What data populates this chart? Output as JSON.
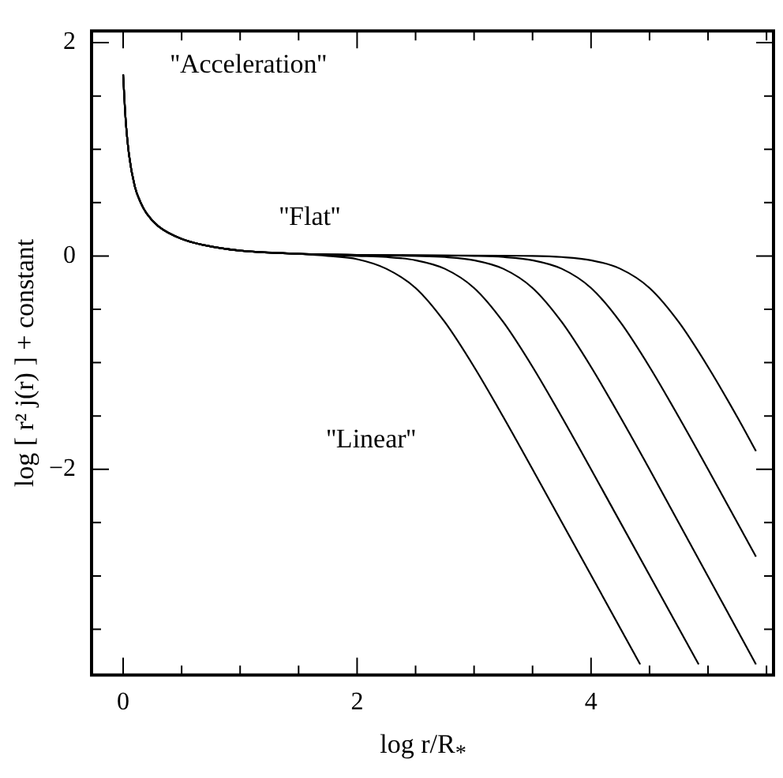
{
  "chart_data": {
    "type": "line",
    "xlabel": "log r/R$_{*}$",
    "ylabel": "log [ r² j(r) ] + constant",
    "xlim": [
      -0.27,
      5.56
    ],
    "ylim": [
      -3.93,
      2.11
    ],
    "xticks": [
      0,
      {
        "value": 0.5,
        "label": null
      },
      {
        "value": 1,
        "label": null
      },
      {
        "value": 1.5,
        "label": null
      },
      2,
      {
        "value": 2.5,
        "label": null
      },
      {
        "value": 3,
        "label": null
      },
      {
        "value": 3.5,
        "label": null
      },
      4,
      {
        "value": 4.5,
        "label": null
      },
      {
        "value": 5,
        "label": null
      },
      {
        "value": 5.5,
        "label": null
      }
    ],
    "yticks": [
      {
        "value": -3.5,
        "label": null
      },
      {
        "value": -3,
        "label": null
      },
      {
        "value": -2.5,
        "label": null
      },
      -2,
      {
        "value": -1.5,
        "label": null
      },
      {
        "value": -1,
        "label": null
      },
      {
        "value": -0.5,
        "label": null
      },
      0,
      {
        "value": 0.5,
        "label": null
      },
      {
        "value": 1,
        "label": null
      },
      {
        "value": 1.5,
        "label": null
      },
      2
    ],
    "grid": false,
    "legend": false,
    "marker": "none",
    "line_style": "solid",
    "annotations": [
      "''Acceleration''",
      "''Flat''",
      "''Linear''"
    ],
    "series": [
      {
        "color": "#000000",
        "x": [
          0,
          0.02,
          0.05,
          0.1,
          0.15,
          0.2,
          0.3,
          0.5,
          0.7,
          1,
          1.5,
          1.75,
          2,
          2.25,
          2.5,
          2.75,
          3,
          3.25,
          3.5,
          4.42
        ],
        "values": [
          1.7,
          1.3,
          0.95,
          0.65,
          0.5,
          0.4,
          0.28,
          0.16,
          0.1,
          0.05,
          0.02,
          0,
          -0.03,
          -0.12,
          -0.3,
          -0.62,
          -1.04,
          -1.51,
          -2,
          -3.83
        ]
      },
      {
        "color": "#000000",
        "x": [
          0,
          0.02,
          0.05,
          0.1,
          0.15,
          0.2,
          0.3,
          0.5,
          0.7,
          1,
          1.5,
          2,
          2.25,
          2.5,
          2.75,
          3,
          3.25,
          3.5,
          3.75,
          4,
          4.92
        ],
        "values": [
          1.7,
          1.3,
          0.95,
          0.65,
          0.5,
          0.4,
          0.28,
          0.16,
          0.1,
          0.05,
          0.02,
          0,
          -0.01,
          -0.04,
          -0.12,
          -0.3,
          -0.62,
          -1.04,
          -1.51,
          -2,
          -3.83
        ]
      },
      {
        "color": "#000000",
        "x": [
          0,
          0.02,
          0.05,
          0.1,
          0.15,
          0.2,
          0.3,
          0.5,
          0.7,
          1,
          1.5,
          2,
          2.5,
          2.75,
          3,
          3.25,
          3.5,
          3.75,
          4,
          4.25,
          4.5,
          5.41
        ],
        "values": [
          1.7,
          1.3,
          0.95,
          0.65,
          0.5,
          0.4,
          0.28,
          0.16,
          0.1,
          0.05,
          0.02,
          0.01,
          0,
          -0.01,
          -0.04,
          -0.12,
          -0.3,
          -0.62,
          -1.04,
          -1.51,
          -2,
          -3.83
        ]
      },
      {
        "color": "#000000",
        "x": [
          0,
          0.02,
          0.05,
          0.1,
          0.15,
          0.2,
          0.3,
          0.5,
          0.7,
          1,
          1.5,
          2,
          3,
          3.25,
          3.5,
          3.75,
          4,
          4.25,
          4.5,
          4.75,
          5,
          5.41
        ],
        "values": [
          1.7,
          1.3,
          0.95,
          0.65,
          0.5,
          0.4,
          0.28,
          0.16,
          0.1,
          0.05,
          0.02,
          0.01,
          0,
          -0.01,
          -0.04,
          -0.12,
          -0.3,
          -0.62,
          -1.04,
          -1.51,
          -2,
          -2.82
        ]
      },
      {
        "color": "#000000",
        "x": [
          0,
          0.02,
          0.05,
          0.1,
          0.15,
          0.2,
          0.3,
          0.5,
          0.7,
          1,
          1.5,
          2,
          3.5,
          3.75,
          4,
          4.25,
          4.5,
          4.75,
          5,
          5.25,
          5.41
        ],
        "values": [
          1.7,
          1.3,
          0.95,
          0.65,
          0.5,
          0.4,
          0.28,
          0.16,
          0.1,
          0.05,
          0.02,
          0.01,
          0,
          -0.01,
          -0.04,
          -0.12,
          -0.3,
          -0.62,
          -1.04,
          -1.51,
          -1.83
        ]
      }
    ]
  }
}
